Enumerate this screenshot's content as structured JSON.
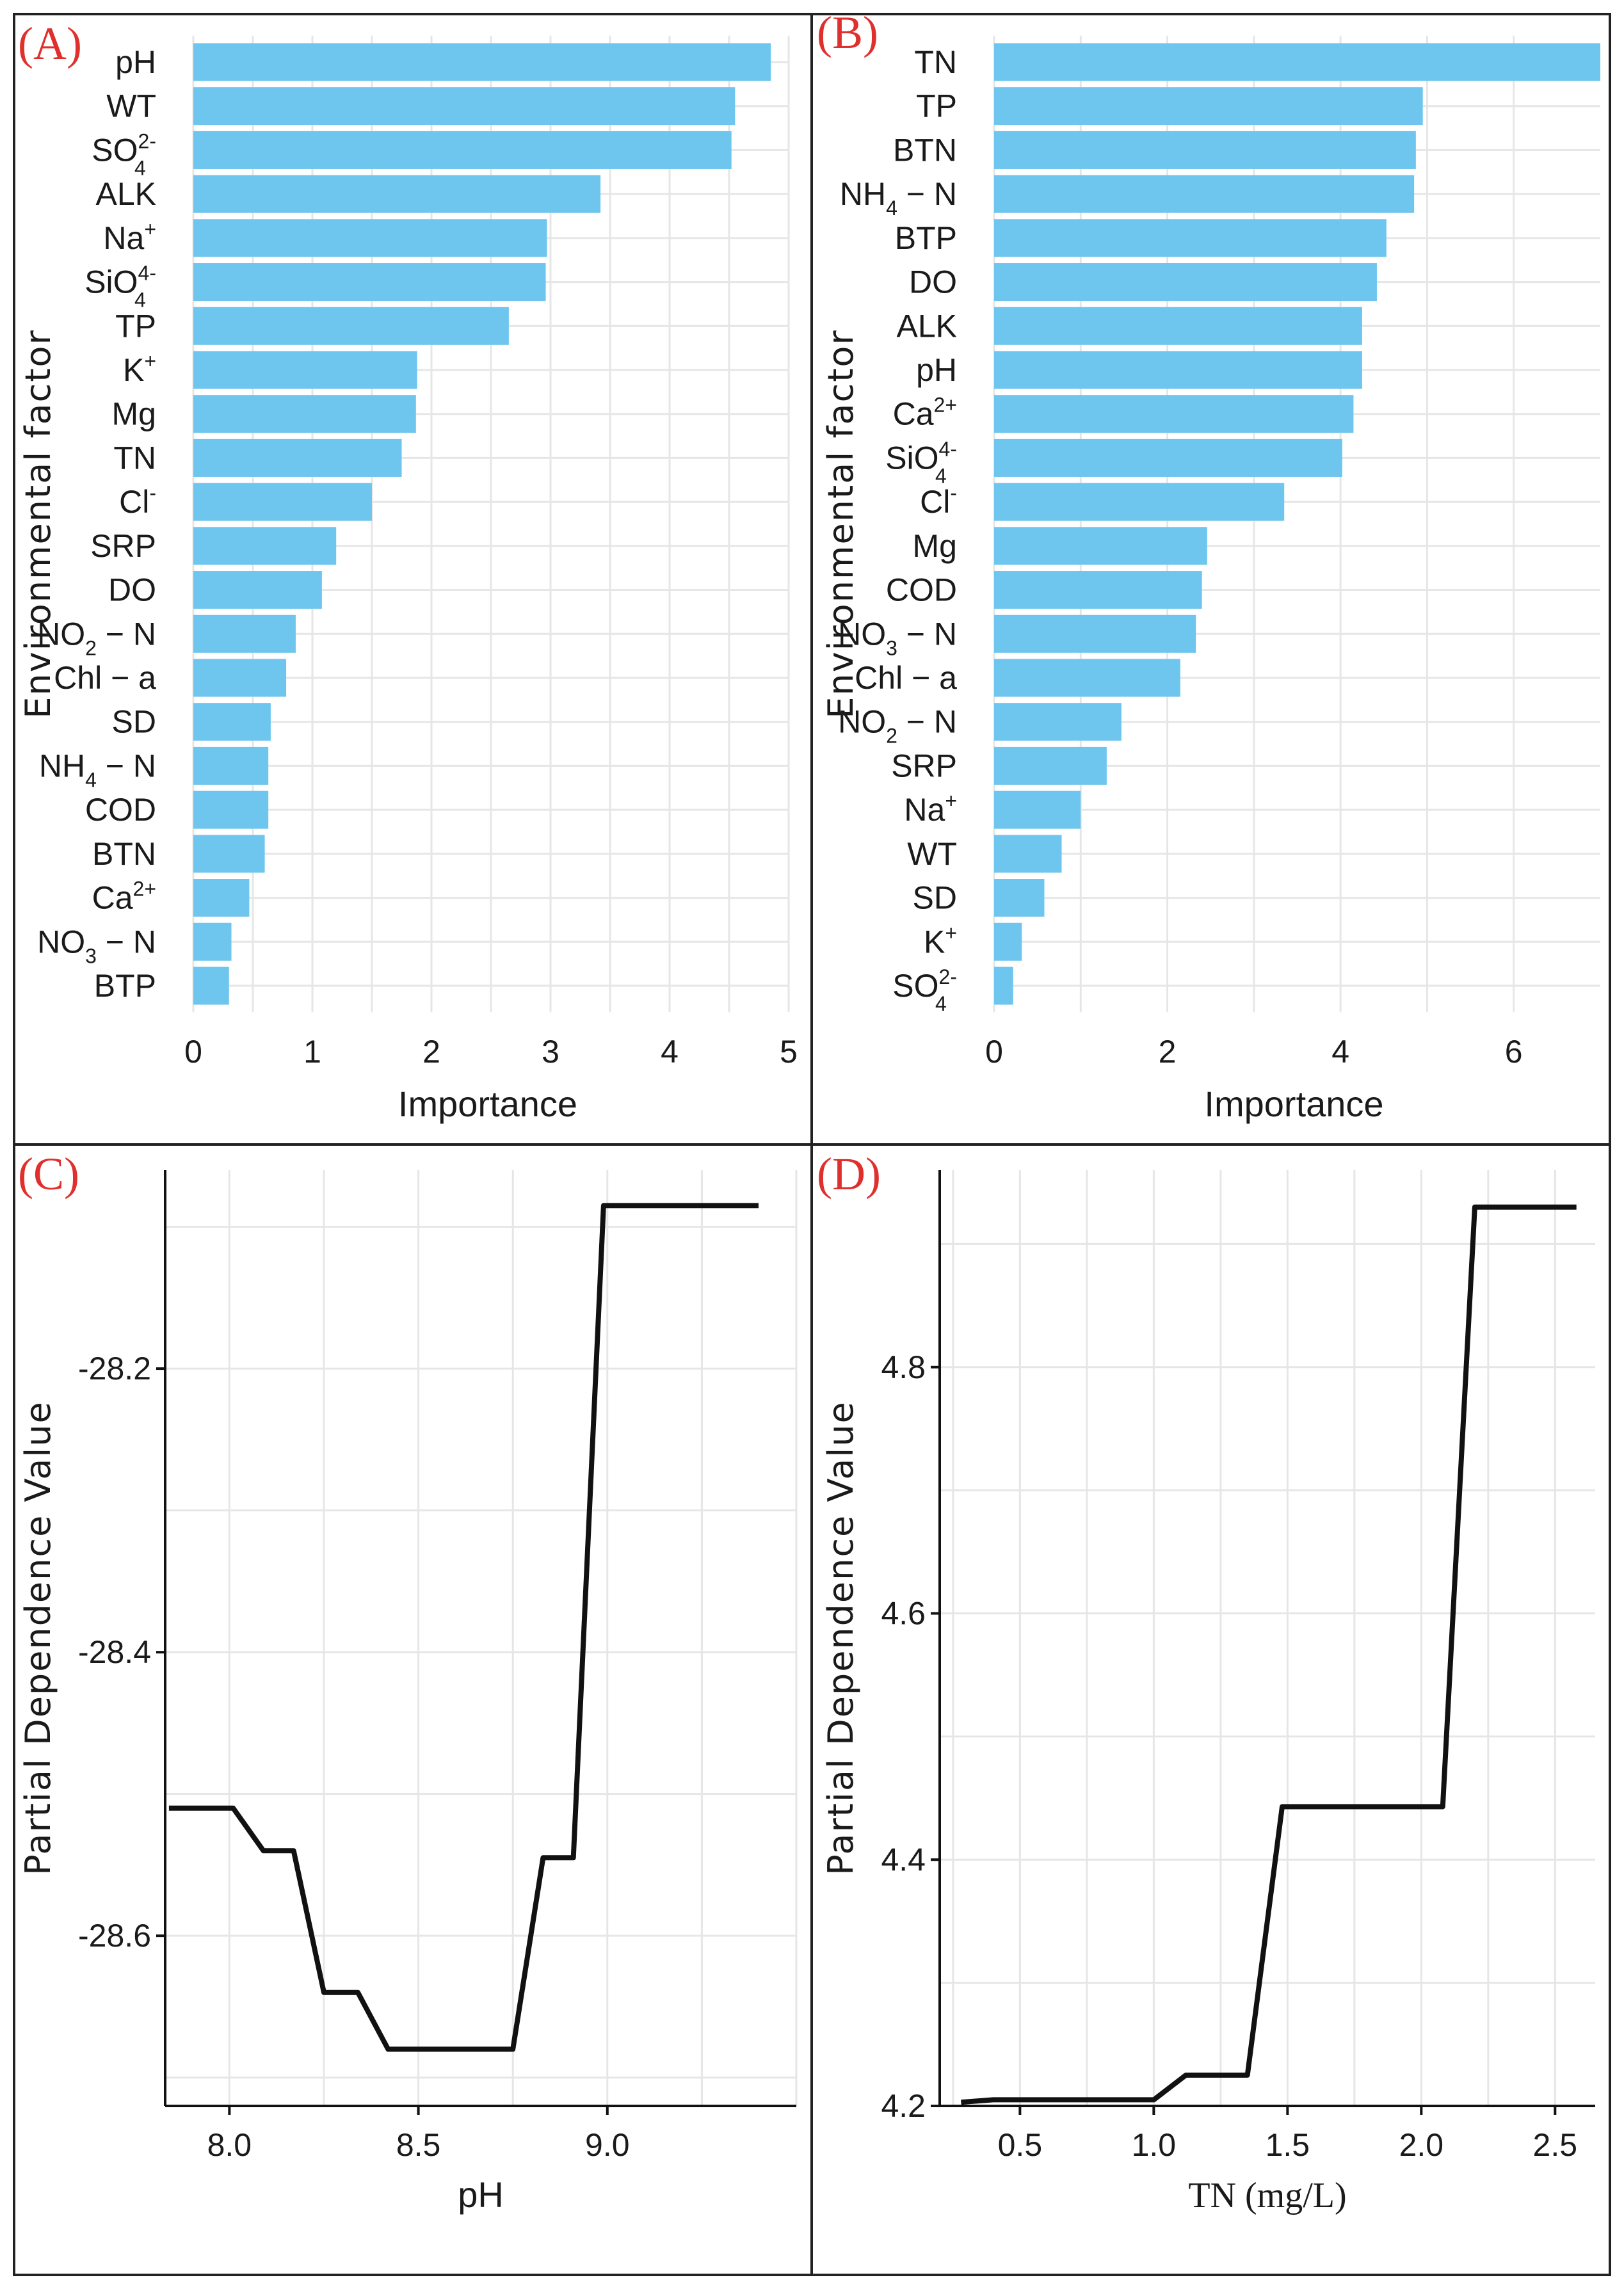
{
  "chart_data": [
    {
      "id": "A",
      "panel_label": "(A)",
      "type": "bar",
      "orientation": "horizontal",
      "xlabel": "Importance",
      "ylabel": "Environmental factor",
      "xlim": [
        0,
        5
      ],
      "xticks": [
        "0",
        "1",
        "2",
        "3",
        "4",
        "5"
      ],
      "xtick_values": [
        0,
        1,
        2,
        3,
        4,
        5
      ],
      "categories": [
        {
          "label": "pH",
          "value": 4.85
        },
        {
          "label": "WT",
          "value": 4.55
        },
        {
          "label": "SO",
          "sup": "2-",
          "sub": "4",
          "value": 4.52
        },
        {
          "label": "ALK",
          "value": 3.42
        },
        {
          "label": "Na",
          "sup": "+",
          "value": 2.97
        },
        {
          "label": "SiO",
          "sup": "4-",
          "sub": "4",
          "value": 2.96
        },
        {
          "label": "TP",
          "value": 2.65
        },
        {
          "label": "K",
          "sup": "+",
          "value": 1.88
        },
        {
          "label": "Mg",
          "value": 1.87
        },
        {
          "label": "TN",
          "value": 1.75
        },
        {
          "label": "Cl",
          "sup": "-",
          "value": 1.5
        },
        {
          "label": "SRP",
          "value": 1.2
        },
        {
          "label": "DO",
          "value": 1.08
        },
        {
          "label": "NO",
          "sub": "2",
          "suffix": " − N",
          "value": 0.86
        },
        {
          "label": "Chl − a",
          "value": 0.78
        },
        {
          "label": "SD",
          "value": 0.65
        },
        {
          "label": "NH",
          "sub": "4",
          "suffix": " − N",
          "value": 0.63
        },
        {
          "label": "COD",
          "value": 0.63
        },
        {
          "label": "BTN",
          "value": 0.6
        },
        {
          "label": "Ca",
          "sup": "2+",
          "value": 0.47
        },
        {
          "label": "NO",
          "sub": "3",
          "suffix": " − N",
          "value": 0.32
        },
        {
          "label": "BTP",
          "value": 0.3
        }
      ]
    },
    {
      "id": "B",
      "panel_label": "(B)",
      "type": "bar",
      "orientation": "horizontal",
      "xlabel": "Importance",
      "ylabel": "Environmental factor",
      "xlim": [
        0,
        7
      ],
      "xticks": [
        "0",
        "2",
        "4",
        "6"
      ],
      "xtick_values": [
        0,
        2,
        4,
        6
      ],
      "categories": [
        {
          "label": "TN",
          "value": 7.0
        },
        {
          "label": "TP",
          "value": 4.95
        },
        {
          "label": "BTN",
          "value": 4.87
        },
        {
          "label": "NH",
          "sub": "4",
          "suffix": " − N",
          "value": 4.85
        },
        {
          "label": "BTP",
          "value": 4.53
        },
        {
          "label": "DO",
          "value": 4.42
        },
        {
          "label": "ALK",
          "value": 4.25
        },
        {
          "label": "pH",
          "value": 4.25
        },
        {
          "label": "Ca",
          "sup": "2+",
          "value": 4.15
        },
        {
          "label": "SiO",
          "sup": "4-",
          "sub": "4",
          "value": 4.02
        },
        {
          "label": "Cl",
          "sup": "-",
          "value": 3.35
        },
        {
          "label": "Mg",
          "value": 2.46
        },
        {
          "label": "COD",
          "value": 2.4
        },
        {
          "label": "NO",
          "sub": "3",
          "suffix": " − N",
          "value": 2.33
        },
        {
          "label": "Chl − a",
          "value": 2.15
        },
        {
          "label": "NO",
          "sub": "2",
          "suffix": " − N",
          "value": 1.47
        },
        {
          "label": "SRP",
          "value": 1.3
        },
        {
          "label": "Na",
          "sup": "+",
          "value": 1.0
        },
        {
          "label": "WT",
          "value": 0.78
        },
        {
          "label": "SD",
          "value": 0.58
        },
        {
          "label": "K",
          "sup": "+",
          "value": 0.32
        },
        {
          "label": "SO",
          "sup": "2-",
          "sub": "4",
          "value": 0.22
        }
      ]
    },
    {
      "id": "C",
      "panel_label": "(C)",
      "type": "line",
      "xlabel": "pH",
      "ylabel": "Partial Dependence Value",
      "xlim": [
        7.83,
        9.5
      ],
      "ylim": [
        -28.72,
        -28.06
      ],
      "xticks": [
        "8.0",
        "8.5",
        "9.0"
      ],
      "xtick_values": [
        8.0,
        8.5,
        9.0
      ],
      "yticks": [
        "-28.6",
        "-28.4",
        "-28.2"
      ],
      "ytick_values": [
        -28.6,
        -28.4,
        -28.2
      ],
      "x": [
        7.84,
        8.01,
        8.09,
        8.17,
        8.25,
        8.34,
        8.42,
        8.75,
        8.83,
        8.91,
        8.99,
        9.4
      ],
      "y": [
        -28.51,
        -28.51,
        -28.54,
        -28.54,
        -28.64,
        -28.64,
        -28.68,
        -28.68,
        -28.545,
        -28.545,
        -28.085,
        -28.085
      ]
    },
    {
      "id": "D",
      "panel_label": "(D)",
      "type": "line",
      "xlabel": "TN (mg/L)",
      "ylabel": "Partial Dependence Value",
      "xlim": [
        0.2,
        2.65
      ],
      "ylim": [
        4.2,
        4.96
      ],
      "xticks": [
        "0.5",
        "1.0",
        "1.5",
        "2.0",
        "2.5"
      ],
      "xtick_values": [
        0.5,
        1.0,
        1.5,
        2.0,
        2.5
      ],
      "yticks": [
        "4.2",
        "4.4",
        "4.6",
        "4.8"
      ],
      "ytick_values": [
        4.2,
        4.4,
        4.6,
        4.8
      ],
      "x": [
        0.28,
        0.4,
        1.0,
        1.12,
        1.35,
        1.48,
        2.08,
        2.2,
        2.58
      ],
      "y": [
        4.203,
        4.205,
        4.205,
        4.225,
        4.225,
        4.443,
        4.443,
        4.93,
        4.93
      ]
    }
  ]
}
